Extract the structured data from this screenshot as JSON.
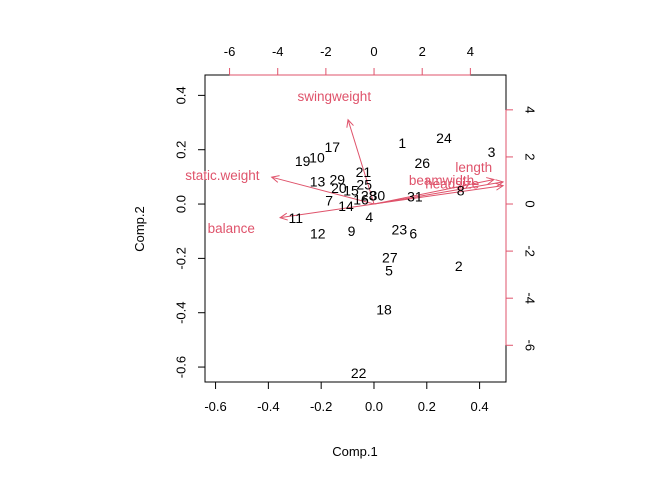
{
  "chart_data": {
    "type": "biplot",
    "xlabel": "Comp.1",
    "ylabel": "Comp.2",
    "xlim": [
      -0.64,
      0.5
    ],
    "ylim": [
      -0.655,
      0.475
    ],
    "x_ticks": [
      "-0.6",
      "-0.4",
      "-0.2",
      "0.0",
      "0.2",
      "0.4"
    ],
    "x_tick_values": [
      -0.6,
      -0.4,
      -0.2,
      0.0,
      0.2,
      0.4
    ],
    "y_ticks": [
      "-0.6",
      "-0.4",
      "-0.2",
      "0.0",
      "0.2",
      "0.4"
    ],
    "y_tick_values": [
      -0.6,
      -0.4,
      -0.2,
      0.0,
      0.2,
      0.4
    ],
    "top_axis": {
      "lim": [
        -7.02,
        5.48
      ],
      "ticks": [
        "-6",
        "-4",
        "-2",
        "0",
        "2",
        "4"
      ],
      "tick_values": [
        -6,
        -4,
        -2,
        0,
        2,
        4
      ]
    },
    "right_axis": {
      "lim": [
        -7.56,
        5.48
      ],
      "ticks": [
        "-6",
        "-4",
        "-2",
        "0",
        "2",
        "4"
      ],
      "tick_values": [
        -6,
        -4,
        -2,
        0,
        2,
        4
      ]
    },
    "arrow_color": "#DF536B",
    "point_color": "#000000",
    "points": [
      {
        "label": "1",
        "x": 0.107,
        "y": 0.225
      },
      {
        "label": "24",
        "x": 0.265,
        "y": 0.243
      },
      {
        "label": "3",
        "x": 0.445,
        "y": 0.191
      },
      {
        "label": "17",
        "x": -0.158,
        "y": 0.209
      },
      {
        "label": "10",
        "x": -0.216,
        "y": 0.171
      },
      {
        "label": "19",
        "x": -0.27,
        "y": 0.158
      },
      {
        "label": "26",
        "x": 0.183,
        "y": 0.151
      },
      {
        "label": "21",
        "x": -0.04,
        "y": 0.118
      },
      {
        "label": "13",
        "x": -0.214,
        "y": 0.082
      },
      {
        "label": "29",
        "x": -0.139,
        "y": 0.09
      },
      {
        "label": "25",
        "x": -0.037,
        "y": 0.072
      },
      {
        "label": "20",
        "x": -0.133,
        "y": 0.058
      },
      {
        "label": "15",
        "x": -0.087,
        "y": 0.05
      },
      {
        "label": "30",
        "x": 0.013,
        "y": 0.032
      },
      {
        "label": "28",
        "x": -0.02,
        "y": 0.032
      },
      {
        "label": "16",
        "x": -0.049,
        "y": 0.016
      },
      {
        "label": "7",
        "x": -0.17,
        "y": 0.013
      },
      {
        "label": "14",
        "x": -0.106,
        "y": -0.008
      },
      {
        "label": "31",
        "x": 0.155,
        "y": 0.027
      },
      {
        "label": "8",
        "x": 0.328,
        "y": 0.049
      },
      {
        "label": "4",
        "x": -0.018,
        "y": -0.048
      },
      {
        "label": "11",
        "x": -0.296,
        "y": -0.051
      },
      {
        "label": "12",
        "x": -0.213,
        "y": -0.108
      },
      {
        "label": "9",
        "x": -0.085,
        "y": -0.1
      },
      {
        "label": "23",
        "x": 0.096,
        "y": -0.094
      },
      {
        "label": "6",
        "x": 0.149,
        "y": -0.108
      },
      {
        "label": "27",
        "x": 0.06,
        "y": -0.197
      },
      {
        "label": "5",
        "x": 0.057,
        "y": -0.245
      },
      {
        "label": "2",
        "x": 0.321,
        "y": -0.228
      },
      {
        "label": "18",
        "x": 0.038,
        "y": -0.388
      },
      {
        "label": "22",
        "x": -0.058,
        "y": -0.622
      }
    ],
    "loadings": [
      {
        "name": "swingweight",
        "x": -1.08,
        "y": 3.58,
        "label_x": -1.65,
        "label_y": 4.58
      },
      {
        "name": "static.weight",
        "x": -4.25,
        "y": 1.14,
        "label_x": -6.3,
        "label_y": 1.23
      },
      {
        "name": "balance",
        "x": -3.9,
        "y": -0.58,
        "label_x": -5.93,
        "label_y": -1.04
      },
      {
        "name": "length",
        "x": 4.98,
        "y": 1.04,
        "label_x": 4.14,
        "label_y": 1.55
      },
      {
        "name": "beamwidth",
        "x": 5.36,
        "y": 0.94,
        "label_x": 2.8,
        "label_y": 1.0
      },
      {
        "name": "headsize",
        "x": 5.36,
        "y": 0.78,
        "label_x": 3.25,
        "label_y": 0.87
      }
    ]
  }
}
